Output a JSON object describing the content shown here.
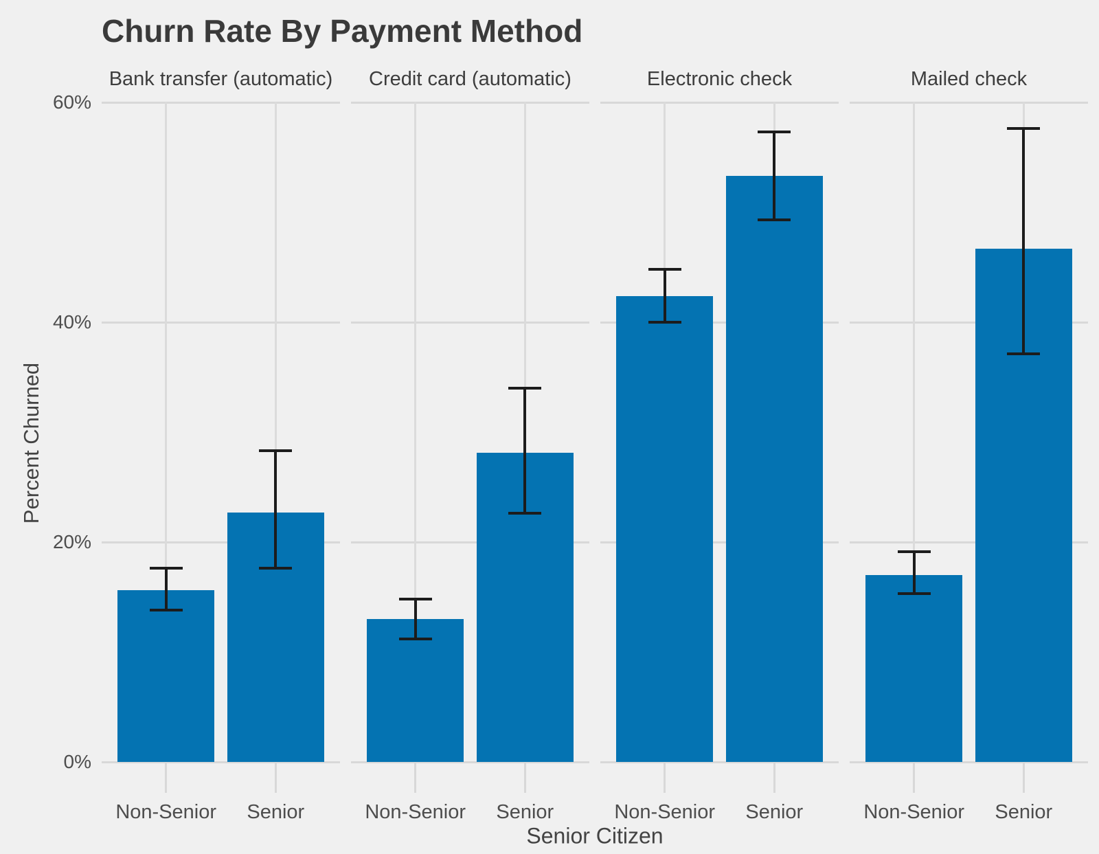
{
  "chart_data": {
    "type": "bar",
    "title": "Churn Rate By Payment Method",
    "xlabel": "Senior Citizen",
    "ylabel": "Percent Churned",
    "ylim": [
      0,
      60
    ],
    "grid": true,
    "legend": false,
    "y_unit": "percent",
    "y_tick_labels": [
      "60%",
      "40%",
      "20%",
      "0%"
    ],
    "y_tick_values": [
      60,
      40,
      20,
      0
    ],
    "error_bars": true,
    "facets": [
      {
        "label": "Bank transfer (automatic)",
        "bars": [
          {
            "category": "Non-Senior",
            "value": 15.6,
            "ci_low": 13.8,
            "ci_high": 17.6
          },
          {
            "category": "Senior",
            "value": 22.7,
            "ci_low": 17.6,
            "ci_high": 28.3
          }
        ]
      },
      {
        "label": "Credit card (automatic)",
        "bars": [
          {
            "category": "Non-Senior",
            "value": 13.0,
            "ci_low": 11.2,
            "ci_high": 14.8
          },
          {
            "category": "Senior",
            "value": 28.1,
            "ci_low": 22.6,
            "ci_high": 34.0
          }
        ]
      },
      {
        "label": "Electronic check",
        "bars": [
          {
            "category": "Non-Senior",
            "value": 42.4,
            "ci_low": 40.0,
            "ci_high": 44.8
          },
          {
            "category": "Senior",
            "value": 53.3,
            "ci_low": 49.3,
            "ci_high": 57.3
          }
        ]
      },
      {
        "label": "Mailed check",
        "bars": [
          {
            "category": "Non-Senior",
            "value": 17.0,
            "ci_low": 15.3,
            "ci_high": 19.1
          },
          {
            "category": "Senior",
            "value": 46.7,
            "ci_low": 37.1,
            "ci_high": 57.6
          }
        ]
      }
    ],
    "colors": {
      "bar": "#0473B2",
      "background": "#F0F0F0",
      "grid": "#D8D8D8",
      "error_bar": "#1C1C1C",
      "title_text": "#3A3A3A",
      "tick_text": "#4D4D4D",
      "axis_label_text": "#434343"
    }
  }
}
